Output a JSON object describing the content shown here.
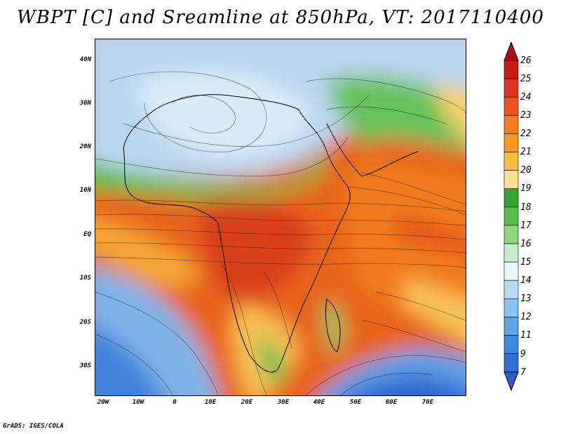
{
  "title": "WBPT [C] and Sreamline at 850hPa, VT: 2017110400",
  "credit": "GrADS: IGES/COLA",
  "lat_ticks": [
    "40N",
    "30N",
    "20N",
    "10N",
    "EQ",
    "10S",
    "20S",
    "30S"
  ],
  "lon_ticks": [
    "20W",
    "10W",
    "0",
    "10E",
    "20E",
    "30E",
    "40E",
    "50E",
    "60E",
    "70E"
  ],
  "colorbar": {
    "labels": [
      "26",
      "25",
      "24",
      "23",
      "22",
      "21",
      "20",
      "19",
      "18",
      "17",
      "16",
      "15",
      "14",
      "13",
      "12",
      "11",
      "9",
      "7"
    ],
    "colors": [
      "#a50f15",
      "#c81d13",
      "#e0301e",
      "#f0521f",
      "#f87c1c",
      "#fa9b21",
      "#fbbc45",
      "#fde08c",
      "#33a532",
      "#57c04a",
      "#8bd77a",
      "#c5eccb",
      "#e9f8fb",
      "#b6dbf4",
      "#89c2ef",
      "#5ea6e8",
      "#3d89df",
      "#2f6fd3",
      "#2a5fc8"
    ]
  }
}
